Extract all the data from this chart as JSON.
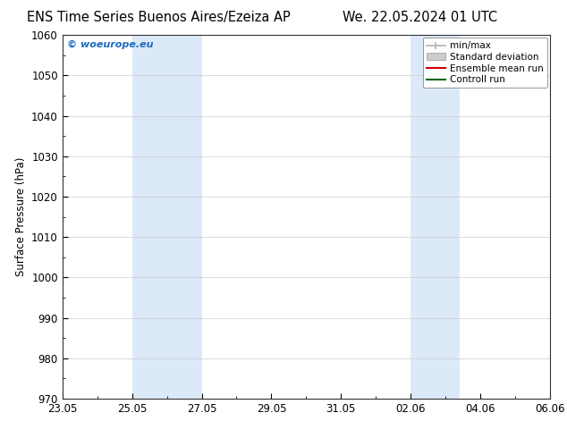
{
  "title_left": "ENS Time Series Buenos Aires/Ezeiza AP",
  "title_right": "We. 22.05.2024 01 UTC",
  "ylabel": "Surface Pressure (hPa)",
  "ylim": [
    970,
    1060
  ],
  "yticks": [
    970,
    980,
    990,
    1000,
    1010,
    1020,
    1030,
    1040,
    1050,
    1060
  ],
  "xtick_labels": [
    "23.05",
    "25.05",
    "27.05",
    "29.05",
    "31.05",
    "02.06",
    "04.06",
    "06.06"
  ],
  "xtick_positions": [
    0,
    2,
    4,
    6,
    8,
    10,
    12,
    14
  ],
  "xlim": [
    0,
    14
  ],
  "shaded_regions": [
    {
      "x_start": 2,
      "x_end": 4,
      "color": "#dce9f8"
    },
    {
      "x_start": 10,
      "x_end": 11.4,
      "color": "#dce9f8"
    }
  ],
  "watermark": "© woeurope.eu",
  "watermark_color": "#1a6abf",
  "legend_items": [
    {
      "label": "min/max",
      "color": "#b0b0b0",
      "style": "minmax"
    },
    {
      "label": "Standard deviation",
      "color": "#cccccc",
      "style": "std"
    },
    {
      "label": "Ensemble mean run",
      "color": "#cc0000",
      "style": "line"
    },
    {
      "label": "Controll run",
      "color": "#006600",
      "style": "line"
    }
  ],
  "bg_color": "#ffffff",
  "grid_color": "#cccccc",
  "title_fontsize": 10.5,
  "tick_fontsize": 8.5,
  "legend_fontsize": 7.5,
  "ylabel_fontsize": 8.5
}
